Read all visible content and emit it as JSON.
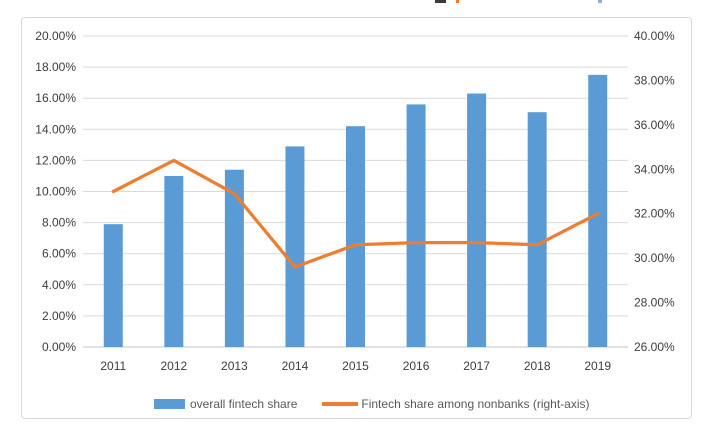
{
  "chart_data": {
    "type": "bar",
    "subtype": "combo-bar-line-dual-axis",
    "title": "",
    "categories": [
      "2011",
      "2012",
      "2013",
      "2014",
      "2015",
      "2016",
      "2017",
      "2018",
      "2019"
    ],
    "series": [
      {
        "name": "overall fintech share",
        "type": "bar",
        "axis": "left",
        "color": "#5B9BD5",
        "values": [
          7.9,
          11.0,
          11.4,
          12.9,
          14.2,
          15.6,
          16.3,
          15.1,
          17.5
        ]
      },
      {
        "name": "Fintech share among nonbanks (right-axis)",
        "type": "line",
        "axis": "right",
        "color": "#ED7D31",
        "values": [
          33.0,
          34.4,
          32.9,
          29.6,
          30.6,
          30.7,
          30.7,
          30.6,
          32.0
        ]
      }
    ],
    "left_axis": {
      "min": 0,
      "max": 20,
      "step": 2,
      "tick_labels": [
        "0.00%",
        "2.00%",
        "4.00%",
        "6.00%",
        "8.00%",
        "10.00%",
        "12.00%",
        "14.00%",
        "16.00%",
        "18.00%",
        "20.00%"
      ]
    },
    "right_axis": {
      "min": 26,
      "max": 40,
      "step": 2,
      "tick_labels": [
        "26.00%",
        "28.00%",
        "30.00%",
        "32.00%",
        "34.00%",
        "36.00%",
        "38.00%",
        "40.00%"
      ]
    },
    "grid": true,
    "legend_position": "bottom",
    "xlabel": "",
    "ylabel": ""
  },
  "colors": {
    "bar": "#5B9BD5",
    "line": "#ED7D31",
    "grid": "#D9D9D9",
    "axis_line": "#C6C6C6",
    "tick_text": "#3d3d3d",
    "legend_text": "#595959",
    "frame_border": "#D9D9D9"
  }
}
